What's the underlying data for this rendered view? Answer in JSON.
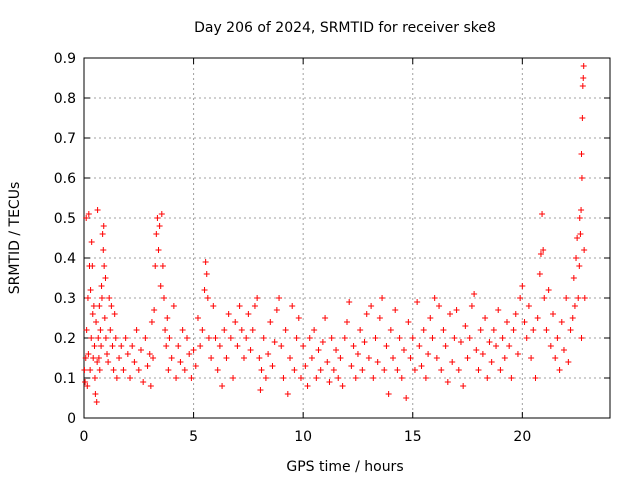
{
  "chart_data": {
    "type": "scatter",
    "title": "Day 206 of 2024, SRMTID for receiver ske8",
    "xlabel": "GPS time / hours",
    "ylabel": "SRMTID / TECUs",
    "xlim": [
      0,
      24
    ],
    "ylim": [
      0,
      0.9
    ],
    "xticks": [
      0,
      5,
      10,
      15,
      20
    ],
    "xtick_labels": [
      "0",
      "5",
      "10",
      "15",
      "20"
    ],
    "yticks": [
      0,
      0.1,
      0.2,
      0.3,
      0.4,
      0.5,
      0.6,
      0.7,
      0.8,
      0.9
    ],
    "ytick_labels": [
      "0",
      "0.1",
      "0.2",
      "0.3",
      "0.4",
      "0.5",
      "0.6",
      "0.7",
      "0.8",
      "0.9"
    ],
    "grid": true,
    "marker": "+",
    "color": "#ff0000",
    "series": [
      {
        "name": "SRMTID",
        "points": [
          [
            0.02,
            0.12
          ],
          [
            0.05,
            0.09
          ],
          [
            0.08,
            0.15
          ],
          [
            0.1,
            0.5
          ],
          [
            0.12,
            0.22
          ],
          [
            0.15,
            0.08
          ],
          [
            0.18,
            0.3
          ],
          [
            0.2,
            0.16
          ],
          [
            0.22,
            0.51
          ],
          [
            0.25,
            0.38
          ],
          [
            0.28,
            0.12
          ],
          [
            0.3,
            0.32
          ],
          [
            0.33,
            0.2
          ],
          [
            0.35,
            0.44
          ],
          [
            0.38,
            0.38
          ],
          [
            0.4,
            0.26
          ],
          [
            0.42,
            0.15
          ],
          [
            0.45,
            0.28
          ],
          [
            0.48,
            0.18
          ],
          [
            0.5,
            0.1
          ],
          [
            0.52,
            0.06
          ],
          [
            0.55,
            0.24
          ],
          [
            0.58,
            0.04
          ],
          [
            0.6,
            0.14
          ],
          [
            0.62,
            0.52
          ],
          [
            0.65,
            0.2
          ],
          [
            0.68,
            0.15
          ],
          [
            0.7,
            0.28
          ],
          [
            0.72,
            0.12
          ],
          [
            0.75,
            0.22
          ],
          [
            0.78,
            0.18
          ],
          [
            0.8,
            0.33
          ],
          [
            0.82,
            0.3
          ],
          [
            0.85,
            0.46
          ],
          [
            0.88,
            0.42
          ],
          [
            0.9,
            0.48
          ],
          [
            0.92,
            0.38
          ],
          [
            0.95,
            0.25
          ],
          [
            0.98,
            0.35
          ],
          [
            1.0,
            0.2
          ],
          [
            1.05,
            0.16
          ],
          [
            1.1,
            0.14
          ],
          [
            1.15,
            0.3
          ],
          [
            1.2,
            0.22
          ],
          [
            1.25,
            0.28
          ],
          [
            1.3,
            0.18
          ],
          [
            1.35,
            0.12
          ],
          [
            1.4,
            0.26
          ],
          [
            1.45,
            0.2
          ],
          [
            1.5,
            0.1
          ],
          [
            1.6,
            0.15
          ],
          [
            1.7,
            0.18
          ],
          [
            1.8,
            0.12
          ],
          [
            1.9,
            0.2
          ],
          [
            2.0,
            0.16
          ],
          [
            2.1,
            0.1
          ],
          [
            2.2,
            0.18
          ],
          [
            2.3,
            0.14
          ],
          [
            2.4,
            0.22
          ],
          [
            2.5,
            0.12
          ],
          [
            2.6,
            0.17
          ],
          [
            2.7,
            0.09
          ],
          [
            2.8,
            0.2
          ],
          [
            2.9,
            0.13
          ],
          [
            3.0,
            0.16
          ],
          [
            3.05,
            0.08
          ],
          [
            3.1,
            0.24
          ],
          [
            3.15,
            0.15
          ],
          [
            3.2,
            0.27
          ],
          [
            3.25,
            0.38
          ],
          [
            3.3,
            0.46
          ],
          [
            3.35,
            0.5
          ],
          [
            3.4,
            0.42
          ],
          [
            3.45,
            0.48
          ],
          [
            3.5,
            0.33
          ],
          [
            3.55,
            0.51
          ],
          [
            3.6,
            0.38
          ],
          [
            3.65,
            0.3
          ],
          [
            3.7,
            0.22
          ],
          [
            3.75,
            0.18
          ],
          [
            3.8,
            0.25
          ],
          [
            3.85,
            0.12
          ],
          [
            3.9,
            0.2
          ],
          [
            4.0,
            0.15
          ],
          [
            4.1,
            0.28
          ],
          [
            4.2,
            0.1
          ],
          [
            4.3,
            0.18
          ],
          [
            4.4,
            0.14
          ],
          [
            4.5,
            0.22
          ],
          [
            4.6,
            0.12
          ],
          [
            4.7,
            0.2
          ],
          [
            4.8,
            0.16
          ],
          [
            4.9,
            0.1
          ],
          [
            5.0,
            0.17
          ],
          [
            5.1,
            0.13
          ],
          [
            5.2,
            0.25
          ],
          [
            5.3,
            0.18
          ],
          [
            5.4,
            0.22
          ],
          [
            5.5,
            0.32
          ],
          [
            5.55,
            0.39
          ],
          [
            5.6,
            0.36
          ],
          [
            5.65,
            0.3
          ],
          [
            5.7,
            0.2
          ],
          [
            5.8,
            0.15
          ],
          [
            5.9,
            0.28
          ],
          [
            6.0,
            0.2
          ],
          [
            6.1,
            0.12
          ],
          [
            6.2,
            0.18
          ],
          [
            6.3,
            0.08
          ],
          [
            6.4,
            0.22
          ],
          [
            6.5,
            0.15
          ],
          [
            6.6,
            0.26
          ],
          [
            6.7,
            0.2
          ],
          [
            6.8,
            0.1
          ],
          [
            6.9,
            0.24
          ],
          [
            7.0,
            0.18
          ],
          [
            7.1,
            0.28
          ],
          [
            7.2,
            0.22
          ],
          [
            7.3,
            0.15
          ],
          [
            7.4,
            0.2
          ],
          [
            7.5,
            0.26
          ],
          [
            7.6,
            0.17
          ],
          [
            7.7,
            0.22
          ],
          [
            7.8,
            0.28
          ],
          [
            7.9,
            0.3
          ],
          [
            8.0,
            0.15
          ],
          [
            8.05,
            0.07
          ],
          [
            8.1,
            0.12
          ],
          [
            8.2,
            0.2
          ],
          [
            8.3,
            0.1
          ],
          [
            8.4,
            0.16
          ],
          [
            8.5,
            0.24
          ],
          [
            8.6,
            0.13
          ],
          [
            8.7,
            0.19
          ],
          [
            8.8,
            0.27
          ],
          [
            8.9,
            0.3
          ],
          [
            9.0,
            0.18
          ],
          [
            9.1,
            0.1
          ],
          [
            9.2,
            0.22
          ],
          [
            9.3,
            0.06
          ],
          [
            9.4,
            0.15
          ],
          [
            9.5,
            0.28
          ],
          [
            9.6,
            0.12
          ],
          [
            9.7,
            0.2
          ],
          [
            9.8,
            0.25
          ],
          [
            9.9,
            0.1
          ],
          [
            10.0,
            0.18
          ],
          [
            10.1,
            0.13
          ],
          [
            10.2,
            0.08
          ],
          [
            10.3,
            0.2
          ],
          [
            10.4,
            0.15
          ],
          [
            10.5,
            0.22
          ],
          [
            10.6,
            0.1
          ],
          [
            10.7,
            0.17
          ],
          [
            10.8,
            0.12
          ],
          [
            10.9,
            0.19
          ],
          [
            11.0,
            0.25
          ],
          [
            11.1,
            0.14
          ],
          [
            11.2,
            0.09
          ],
          [
            11.3,
            0.2
          ],
          [
            11.4,
            0.12
          ],
          [
            11.5,
            0.17
          ],
          [
            11.6,
            0.1
          ],
          [
            11.7,
            0.15
          ],
          [
            11.8,
            0.08
          ],
          [
            11.9,
            0.2
          ],
          [
            12.0,
            0.24
          ],
          [
            12.1,
            0.29
          ],
          [
            12.2,
            0.13
          ],
          [
            12.3,
            0.18
          ],
          [
            12.4,
            0.1
          ],
          [
            12.5,
            0.16
          ],
          [
            12.6,
            0.22
          ],
          [
            12.7,
            0.12
          ],
          [
            12.8,
            0.19
          ],
          [
            12.9,
            0.26
          ],
          [
            13.0,
            0.15
          ],
          [
            13.1,
            0.28
          ],
          [
            13.2,
            0.1
          ],
          [
            13.3,
            0.2
          ],
          [
            13.4,
            0.14
          ],
          [
            13.5,
            0.25
          ],
          [
            13.6,
            0.3
          ],
          [
            13.7,
            0.12
          ],
          [
            13.8,
            0.18
          ],
          [
            13.9,
            0.06
          ],
          [
            14.0,
            0.22
          ],
          [
            14.1,
            0.15
          ],
          [
            14.2,
            0.27
          ],
          [
            14.3,
            0.12
          ],
          [
            14.4,
            0.2
          ],
          [
            14.5,
            0.1
          ],
          [
            14.6,
            0.17
          ],
          [
            14.7,
            0.05
          ],
          [
            14.8,
            0.24
          ],
          [
            14.9,
            0.15
          ],
          [
            15.0,
            0.2
          ],
          [
            15.1,
            0.12
          ],
          [
            15.2,
            0.29
          ],
          [
            15.3,
            0.18
          ],
          [
            15.4,
            0.13
          ],
          [
            15.5,
            0.22
          ],
          [
            15.6,
            0.1
          ],
          [
            15.7,
            0.16
          ],
          [
            15.8,
            0.25
          ],
          [
            15.9,
            0.2
          ],
          [
            16.0,
            0.3
          ],
          [
            16.1,
            0.15
          ],
          [
            16.2,
            0.28
          ],
          [
            16.3,
            0.12
          ],
          [
            16.4,
            0.22
          ],
          [
            16.5,
            0.18
          ],
          [
            16.6,
            0.09
          ],
          [
            16.7,
            0.26
          ],
          [
            16.8,
            0.14
          ],
          [
            16.9,
            0.2
          ],
          [
            17.0,
            0.27
          ],
          [
            17.1,
            0.12
          ],
          [
            17.2,
            0.19
          ],
          [
            17.3,
            0.08
          ],
          [
            17.4,
            0.23
          ],
          [
            17.5,
            0.15
          ],
          [
            17.6,
            0.2
          ],
          [
            17.7,
            0.28
          ],
          [
            17.8,
            0.31
          ],
          [
            17.9,
            0.17
          ],
          [
            18.0,
            0.12
          ],
          [
            18.1,
            0.22
          ],
          [
            18.2,
            0.16
          ],
          [
            18.3,
            0.25
          ],
          [
            18.4,
            0.1
          ],
          [
            18.5,
            0.19
          ],
          [
            18.6,
            0.14
          ],
          [
            18.7,
            0.22
          ],
          [
            18.8,
            0.18
          ],
          [
            18.9,
            0.27
          ],
          [
            19.0,
            0.12
          ],
          [
            19.1,
            0.2
          ],
          [
            19.2,
            0.15
          ],
          [
            19.3,
            0.24
          ],
          [
            19.4,
            0.18
          ],
          [
            19.5,
            0.1
          ],
          [
            19.6,
            0.22
          ],
          [
            19.7,
            0.26
          ],
          [
            19.8,
            0.16
          ],
          [
            19.9,
            0.3
          ],
          [
            20.0,
            0.33
          ],
          [
            20.1,
            0.24
          ],
          [
            20.2,
            0.2
          ],
          [
            20.3,
            0.28
          ],
          [
            20.4,
            0.15
          ],
          [
            20.5,
            0.22
          ],
          [
            20.6,
            0.1
          ],
          [
            20.7,
            0.25
          ],
          [
            20.8,
            0.36
          ],
          [
            20.85,
            0.41
          ],
          [
            20.9,
            0.51
          ],
          [
            20.95,
            0.42
          ],
          [
            21.0,
            0.3
          ],
          [
            21.1,
            0.22
          ],
          [
            21.2,
            0.32
          ],
          [
            21.3,
            0.18
          ],
          [
            21.4,
            0.26
          ],
          [
            21.5,
            0.15
          ],
          [
            21.6,
            0.2
          ],
          [
            21.7,
            0.12
          ],
          [
            21.8,
            0.24
          ],
          [
            21.9,
            0.17
          ],
          [
            22.0,
            0.3
          ],
          [
            22.1,
            0.14
          ],
          [
            22.2,
            0.22
          ],
          [
            22.3,
            0.25
          ],
          [
            22.35,
            0.35
          ],
          [
            22.4,
            0.28
          ],
          [
            22.45,
            0.4
          ],
          [
            22.5,
            0.45
          ],
          [
            22.55,
            0.3
          ],
          [
            22.6,
            0.38
          ],
          [
            22.62,
            0.5
          ],
          [
            22.65,
            0.46
          ],
          [
            22.68,
            0.52
          ],
          [
            22.7,
            0.66
          ],
          [
            22.72,
            0.6
          ],
          [
            22.74,
            0.75
          ],
          [
            22.76,
            0.83
          ],
          [
            22.78,
            0.85
          ],
          [
            22.8,
            0.88
          ],
          [
            22.82,
            0.42
          ],
          [
            22.85,
            0.3
          ],
          [
            22.7,
            0.2
          ]
        ]
      }
    ]
  }
}
